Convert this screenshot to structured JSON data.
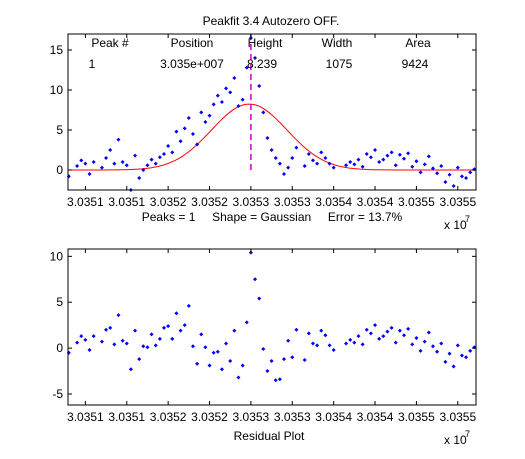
{
  "chart_data": [
    {
      "type": "scatter",
      "title": "Peakfit 3.4 Autozero OFF.",
      "xlabel": "Peaks = 1     Shape = Gaussian     Error = 13.7%",
      "ylabel": "",
      "x_exponent_label": "x 10",
      "x_exponent_power": "7",
      "xlim": [
        30350790,
        30355720
      ],
      "ylim": [
        -2.5,
        17
      ],
      "xticks": [
        30351000,
        30351500,
        30352000,
        30352500,
        30353000,
        30353500,
        30354000,
        30354500,
        30355000,
        30355500
      ],
      "xtick_labels": [
        "3.0351",
        "3.0351",
        "3.0352",
        "3.0352",
        "3.0353",
        "3.0353",
        "3.0354",
        "3.0354",
        "3.0355",
        "3.0355"
      ],
      "yticks": [
        0,
        5,
        10,
        15
      ],
      "grid": false,
      "legend": "none",
      "peak_table": {
        "headers": [
          "Peak #",
          "Position",
          "Height",
          "Width",
          "Area"
        ],
        "rows": [
          [
            "1",
            "3.035e+007",
            "8.239",
            "1075",
            "9424"
          ]
        ]
      },
      "fit": {
        "shape": "Gaussian",
        "position": 30352980,
        "height": 8.239,
        "width": 1075
      },
      "peak_marker_x": 30353000,
      "colors": {
        "points": "#0000ff",
        "fit": "#ff0000",
        "peak_marker": "#cc00cc"
      },
      "series": [
        {
          "style": "points",
          "x": [
            30350800,
            30350900,
            30350950,
            30351000,
            30351050,
            30351100,
            30351200,
            30351250,
            30351300,
            30351350,
            30351400,
            30351450,
            30351500,
            30351550,
            30351600,
            30351650,
            30351700,
            30351750,
            30351800,
            30351850,
            30351900,
            30351950,
            30352000,
            30352050,
            30352100,
            30352150,
            30352200,
            30352250,
            30352300,
            30352350,
            30352400,
            30352450,
            30352500,
            30352550,
            30352600,
            30352650,
            30352700,
            30352750,
            30352800,
            30352850,
            30352900,
            30352950,
            30353000,
            30353050,
            30353100,
            30353150,
            30353200,
            30353250,
            30353300,
            30353350,
            30353400,
            30353450,
            30353500,
            30353550,
            30353650,
            30353700,
            30353750,
            30353800,
            30353850,
            30353900,
            30353950,
            30354000,
            30354150,
            30354200,
            30354250,
            30354300,
            30354350,
            30354400,
            30354450,
            30354500,
            30354550,
            30354600,
            30354650,
            30354700,
            30354750,
            30354800,
            30354850,
            30354900,
            30354950,
            30355000,
            30355050,
            30355100,
            30355150,
            30355200,
            30355250,
            30355300,
            30355350,
            30355400,
            30355450,
            30355500,
            30355550,
            30355600,
            30355650,
            30355700
          ],
          "y": [
            -0.8,
            0.5,
            1.2,
            0.8,
            -0.5,
            1.0,
            0.3,
            1.5,
            2.5,
            0.8,
            3.8,
            1.0,
            0.6,
            -2.5,
            1.8,
            -1.0,
            0.0,
            0.6,
            1.3,
            0.8,
            1.6,
            2.0,
            3.0,
            2.2,
            4.8,
            3.6,
            5.2,
            6.5,
            4.5,
            3.2,
            7.2,
            6.0,
            6.8,
            8.2,
            9.3,
            8.5,
            10.2,
            9.7,
            11.5,
            8.0,
            8.8,
            12.8,
            16.5,
            14.0,
            10.5,
            7.2,
            4.0,
            2.5,
            1.5,
            0.8,
            -0.5,
            0.3,
            1.5,
            2.8,
            0.5,
            2.0,
            1.2,
            0.8,
            2.2,
            1.5,
            0.8,
            0.3,
            0.6,
            1.0,
            0.7,
            1.3,
            0.4,
            2.0,
            1.6,
            2.5,
            1.0,
            1.3,
            1.8,
            2.2,
            0.6,
            1.9,
            1.4,
            2.1,
            0.4,
            1.1,
            -0.3,
            0.7,
            1.7,
            0.2,
            -0.4,
            0.5,
            -1.5,
            -0.6,
            -2.0,
            0.3,
            -0.8,
            -1.0,
            -0.3,
            0.1
          ]
        },
        {
          "style": "line",
          "x": [],
          "y": []
        }
      ]
    },
    {
      "type": "scatter",
      "title": "",
      "xlabel": "Residual Plot",
      "ylabel": "",
      "x_exponent_label": "x 10",
      "x_exponent_power": "7",
      "xlim": [
        30350790,
        30355720
      ],
      "ylim": [
        -6.2,
        10.8
      ],
      "xticks": [
        30351000,
        30351500,
        30352000,
        30352500,
        30353000,
        30353500,
        30354000,
        30354500,
        30355000,
        30355500
      ],
      "xtick_labels": [
        "3.0351",
        "3.0351",
        "3.0352",
        "3.0352",
        "3.0353",
        "3.0353",
        "3.0354",
        "3.0354",
        "3.0355",
        "3.0355"
      ],
      "yticks": [
        -5,
        0,
        5,
        10
      ],
      "grid": false,
      "legend": "none",
      "colors": {
        "points": "#0000ff"
      },
      "series": [
        {
          "style": "points",
          "x": [
            30350800,
            30350900,
            30350950,
            30351000,
            30351050,
            30351100,
            30351200,
            30351250,
            30351300,
            30351350,
            30351400,
            30351450,
            30351500,
            30351550,
            30351600,
            30351650,
            30351700,
            30351750,
            30351800,
            30351850,
            30351900,
            30351950,
            30352000,
            30352050,
            30352100,
            30352150,
            30352200,
            30352250,
            30352300,
            30352350,
            30352400,
            30352450,
            30352500,
            30352550,
            30352600,
            30352650,
            30352700,
            30352750,
            30352800,
            30352850,
            30352900,
            30352950,
            30353000,
            30353050,
            30353100,
            30353150,
            30353200,
            30353250,
            30353300,
            30353350,
            30353400,
            30353450,
            30353500,
            30353550,
            30353650,
            30353700,
            30353750,
            30353800,
            30353850,
            30353900,
            30353950,
            30354000,
            30354150,
            30354200,
            30354250,
            30354300,
            30354350,
            30354400,
            30354450,
            30354500,
            30354550,
            30354600,
            30354650,
            30354700,
            30354750,
            30354800,
            30354850,
            30354900,
            30354950,
            30355000,
            30355050,
            30355100,
            30355150,
            30355200,
            30355250,
            30355300,
            30355350,
            30355400,
            30355450,
            30355500,
            30355550,
            30355600,
            30355650,
            30355700
          ],
          "y": [
            -0.5,
            0.6,
            1.3,
            0.9,
            -0.2,
            1.3,
            0.7,
            2.0,
            2.2,
            0.4,
            3.6,
            0.8,
            0.5,
            -2.3,
            1.9,
            -1.2,
            0.2,
            0.1,
            1.5,
            0.3,
            1.0,
            2.2,
            2.4,
            1.0,
            3.8,
            1.9,
            2.5,
            4.6,
            0.2,
            -1.7,
            1.5,
            0.1,
            -1.9,
            -0.5,
            -0.4,
            -2.3,
            0.5,
            -1.4,
            1.9,
            -3.2,
            -1.9,
            2.8,
            10.4,
            7.5,
            5.4,
            -0.1,
            -2.5,
            -1.4,
            -3.5,
            -3.4,
            -1.2,
            0.8,
            -1.0,
            2.0,
            -1.3,
            1.6,
            0.5,
            0.3,
            1.9,
            1.4,
            0.3,
            -0.2,
            0.5,
            0.9,
            0.6,
            1.3,
            0.4,
            2.0,
            1.6,
            2.5,
            1.0,
            1.3,
            1.8,
            2.2,
            0.6,
            1.9,
            1.4,
            2.1,
            0.4,
            1.1,
            -0.3,
            0.7,
            1.7,
            0.2,
            -0.4,
            0.5,
            -1.5,
            -0.6,
            -2.0,
            0.3,
            -0.8,
            -1.0,
            -0.3,
            0.1
          ]
        }
      ]
    }
  ]
}
